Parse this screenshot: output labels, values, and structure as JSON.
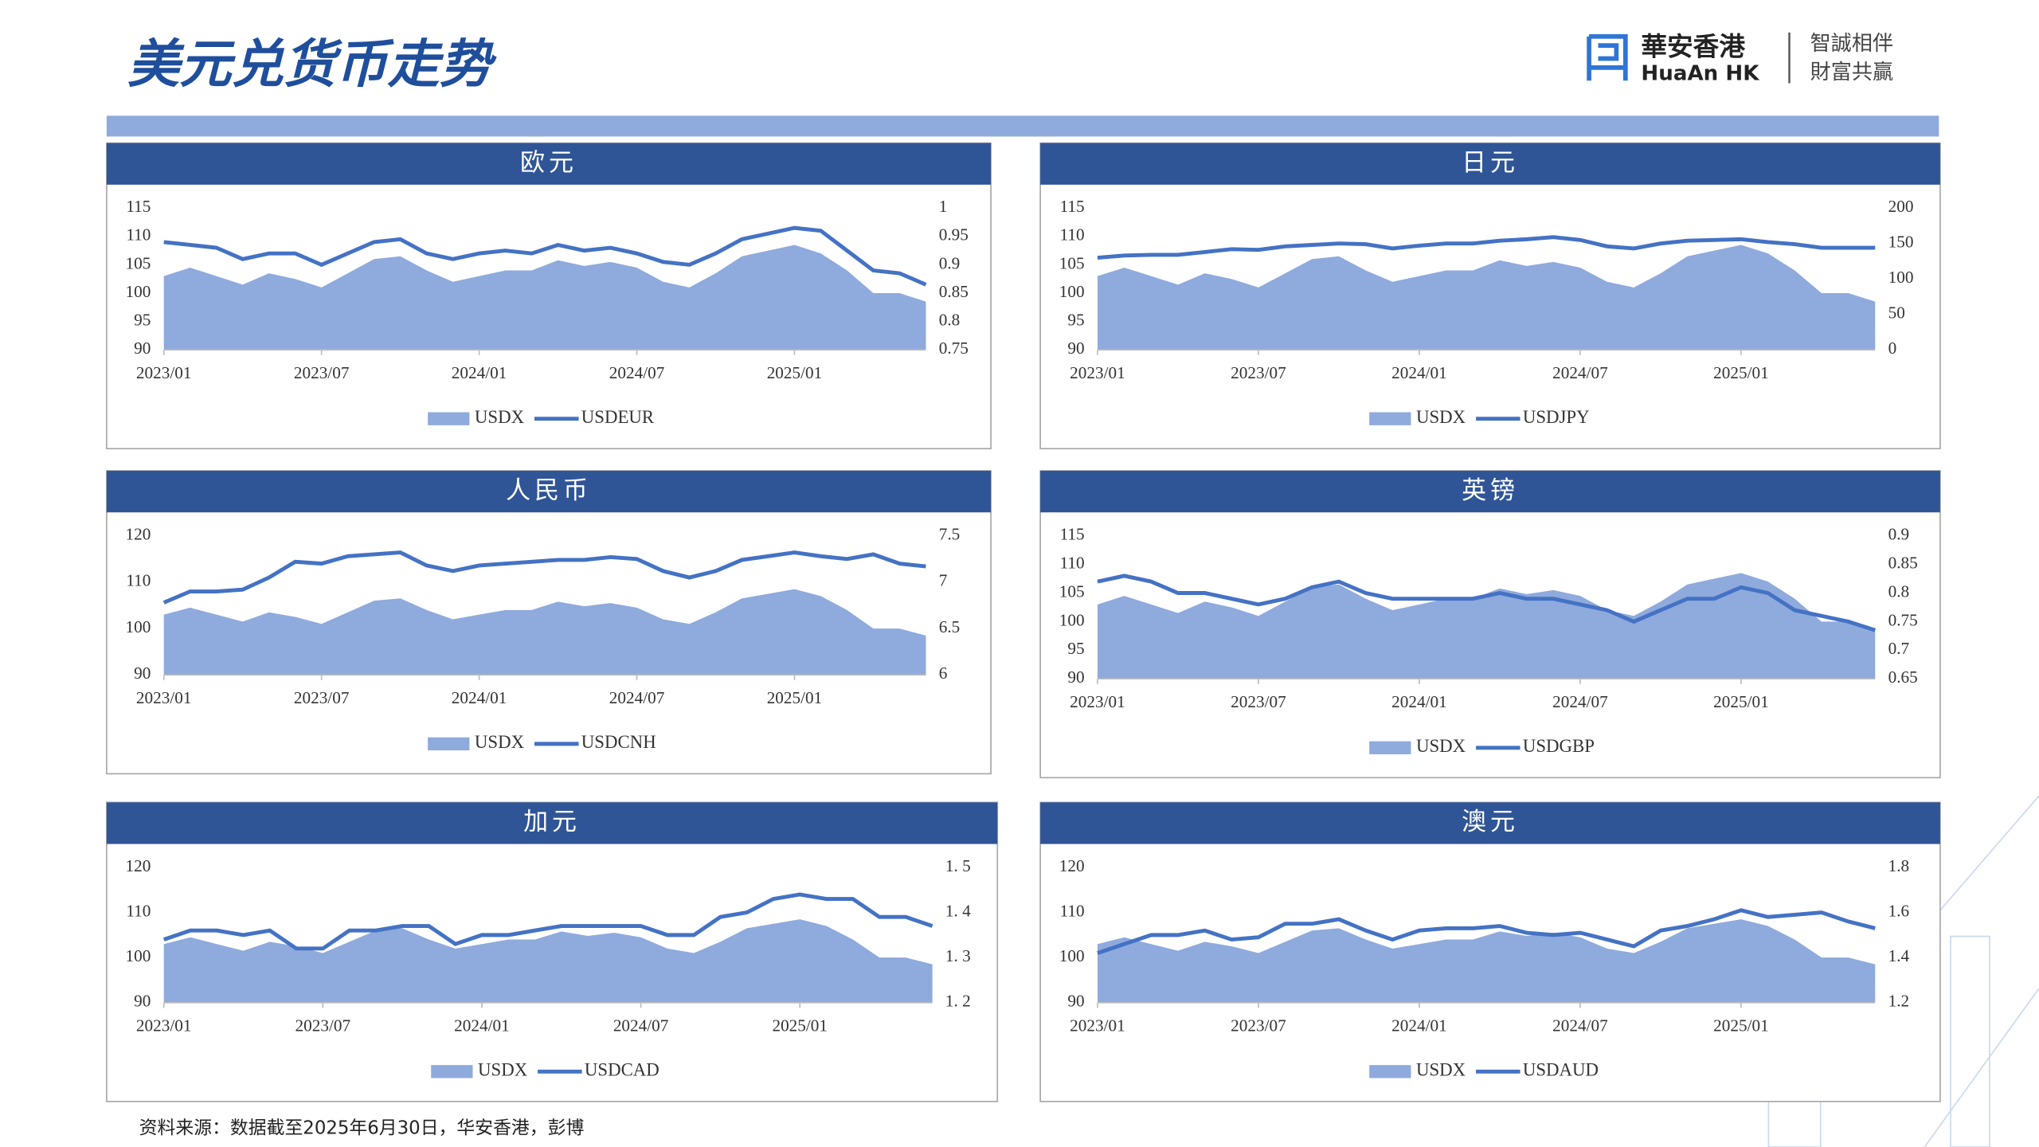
{
  "header": {
    "title": "美元兑货币走势"
  },
  "logo": {
    "name": "華安香港",
    "name_en": "HuaAn HK",
    "slogan1": "智誠相伴",
    "slogan2": "財富共贏"
  },
  "footer": {
    "source": "资料来源：数据截至2025年6月30日，华安香港，彭博"
  },
  "chart_data": [
    {
      "type": "combo",
      "title": "欧元",
      "categories": [
        "2023/01",
        null,
        null,
        null,
        null,
        null,
        "2023/07",
        null,
        null,
        null,
        null,
        null,
        "2024/01",
        null,
        null,
        null,
        null,
        null,
        "2024/07",
        null,
        null,
        null,
        null,
        null,
        "2025/01",
        null,
        null,
        null,
        null,
        null
      ],
      "ylim": [
        90,
        115
      ],
      "yticks": [
        90,
        95,
        100,
        105,
        110,
        115
      ],
      "y2lim": [
        0.75,
        1
      ],
      "y2ticks": [
        0.75,
        0.8,
        0.85,
        0.9,
        0.95,
        1
      ],
      "series": [
        {
          "name": "USDX",
          "type": "area",
          "color": "#8faadc",
          "values": [
            103,
            104.5,
            103,
            101.5,
            103.5,
            102.5,
            101,
            103.5,
            106,
            106.5,
            104,
            102,
            103,
            104,
            104,
            105.8,
            104.8,
            105.5,
            104.5,
            102,
            101,
            103.5,
            106.5,
            107.5,
            108.5,
            107,
            104,
            100,
            100,
            98.5
          ]
        },
        {
          "name": "USDEUR",
          "type": "line",
          "axis": "y2",
          "color": "#4472c4",
          "values": [
            0.94,
            0.935,
            0.93,
            0.91,
            0.92,
            0.92,
            0.9,
            0.92,
            0.94,
            0.945,
            0.92,
            0.91,
            0.92,
            0.925,
            0.92,
            0.935,
            0.925,
            0.93,
            0.92,
            0.905,
            0.9,
            0.92,
            0.945,
            0.955,
            0.965,
            0.96,
            0.925,
            0.89,
            0.885,
            0.865
          ]
        }
      ]
    },
    {
      "type": "combo",
      "title": "日元",
      "categories": [
        "2023/01",
        null,
        null,
        null,
        null,
        null,
        "2023/07",
        null,
        null,
        null,
        null,
        null,
        "2024/01",
        null,
        null,
        null,
        null,
        null,
        "2024/07",
        null,
        null,
        null,
        null,
        null,
        "2025/01",
        null,
        null,
        null,
        null,
        null
      ],
      "ylim": [
        90,
        115
      ],
      "yticks": [
        90,
        95,
        100,
        105,
        110,
        115
      ],
      "y2lim": [
        0,
        200
      ],
      "y2ticks": [
        0,
        50,
        100,
        150,
        200
      ],
      "series": [
        {
          "name": "USDX",
          "type": "area",
          "color": "#8faadc",
          "values": [
            103,
            104.5,
            103,
            101.5,
            103.5,
            102.5,
            101,
            103.5,
            106,
            106.5,
            104,
            102,
            103,
            104,
            104,
            105.8,
            104.8,
            105.5,
            104.5,
            102,
            101,
            103.5,
            106.5,
            107.5,
            108.5,
            107,
            104,
            100,
            100,
            98.5
          ]
        },
        {
          "name": "USDJPY",
          "type": "line",
          "axis": "y2",
          "color": "#4472c4",
          "values": [
            130,
            133,
            134,
            134,
            138,
            142,
            141,
            146,
            148,
            150,
            149,
            143,
            147,
            150,
            150,
            154,
            156,
            159,
            155,
            146,
            143,
            150,
            154,
            155,
            156,
            152,
            149,
            144,
            144,
            144
          ]
        }
      ]
    },
    {
      "type": "combo",
      "title": "人民币",
      "categories": [
        "2023/01",
        null,
        null,
        null,
        null,
        null,
        "2023/07",
        null,
        null,
        null,
        null,
        null,
        "2024/01",
        null,
        null,
        null,
        null,
        null,
        "2024/07",
        null,
        null,
        null,
        null,
        null,
        "2025/01",
        null,
        null,
        null,
        null,
        null
      ],
      "ylim": [
        90,
        120
      ],
      "yticks": [
        90,
        100,
        110,
        120
      ],
      "y2lim": [
        6,
        7.5
      ],
      "y2ticks": [
        6,
        6.5,
        7,
        7.5
      ],
      "series": [
        {
          "name": "USDX",
          "type": "area",
          "color": "#8faadc",
          "values": [
            103,
            104.5,
            103,
            101.5,
            103.5,
            102.5,
            101,
            103.5,
            106,
            106.5,
            104,
            102,
            103,
            104,
            104,
            105.8,
            104.8,
            105.5,
            104.5,
            102,
            101,
            103.5,
            106.5,
            107.5,
            108.5,
            107,
            104,
            100,
            100,
            98.5
          ]
        },
        {
          "name": "USDCNH",
          "type": "line",
          "axis": "y2",
          "color": "#4472c4",
          "values": [
            6.78,
            6.9,
            6.9,
            6.92,
            7.05,
            7.22,
            7.2,
            7.28,
            7.3,
            7.32,
            7.18,
            7.12,
            7.18,
            7.2,
            7.22,
            7.24,
            7.24,
            7.27,
            7.25,
            7.12,
            7.05,
            7.12,
            7.24,
            7.28,
            7.32,
            7.28,
            7.25,
            7.3,
            7.2,
            7.17
          ]
        }
      ]
    },
    {
      "type": "combo",
      "title": "英镑",
      "categories": [
        "2023/01",
        null,
        null,
        null,
        null,
        null,
        "2023/07",
        null,
        null,
        null,
        null,
        null,
        "2024/01",
        null,
        null,
        null,
        null,
        null,
        "2024/07",
        null,
        null,
        null,
        null,
        null,
        "2025/01",
        null,
        null,
        null,
        null,
        null
      ],
      "ylim": [
        90,
        115
      ],
      "yticks": [
        90,
        95,
        100,
        105,
        110,
        115
      ],
      "y2lim": [
        0.65,
        0.9
      ],
      "y2ticks": [
        0.65,
        0.7,
        0.75,
        0.8,
        0.85,
        0.9
      ],
      "series": [
        {
          "name": "USDX",
          "type": "area",
          "color": "#8faadc",
          "values": [
            103,
            104.5,
            103,
            101.5,
            103.5,
            102.5,
            101,
            103.5,
            106,
            106.5,
            104,
            102,
            103,
            104,
            104,
            105.8,
            104.8,
            105.5,
            104.5,
            102,
            101,
            103.5,
            106.5,
            107.5,
            108.5,
            107,
            104,
            100,
            100,
            98.5
          ]
        },
        {
          "name": "USDGBP",
          "type": "line",
          "axis": "y2",
          "color": "#4472c4",
          "values": [
            0.82,
            0.83,
            0.82,
            0.8,
            0.8,
            0.79,
            0.78,
            0.79,
            0.81,
            0.82,
            0.8,
            0.79,
            0.79,
            0.79,
            0.79,
            0.8,
            0.79,
            0.79,
            0.78,
            0.77,
            0.75,
            0.77,
            0.79,
            0.79,
            0.81,
            0.8,
            0.77,
            0.76,
            0.75,
            0.735
          ]
        }
      ]
    },
    {
      "type": "combo",
      "title": "加元",
      "categories": [
        "2023/01",
        null,
        null,
        null,
        null,
        null,
        "2023/07",
        null,
        null,
        null,
        null,
        null,
        "2024/01",
        null,
        null,
        null,
        null,
        null,
        "2024/07",
        null,
        null,
        null,
        null,
        null,
        "2025/01",
        null,
        null,
        null,
        null,
        null
      ],
      "ylim": [
        90,
        120
      ],
      "yticks": [
        90,
        100,
        110,
        120
      ],
      "y2lim": [
        1.2,
        1.5
      ],
      "y2ticks": [
        {
          "value": 1.2,
          "label": "1. 2"
        },
        {
          "value": 1.3,
          "label": "1. 3"
        },
        {
          "value": 1.4,
          "label": "1. 4"
        },
        {
          "value": 1.5,
          "label": "1. 5"
        }
      ],
      "series": [
        {
          "name": "USDX",
          "type": "area",
          "color": "#8faadc",
          "values": [
            103,
            104.5,
            103,
            101.5,
            103.5,
            102.5,
            101,
            103.5,
            106,
            106.5,
            104,
            102,
            103,
            104,
            104,
            105.8,
            104.8,
            105.5,
            104.5,
            102,
            101,
            103.5,
            106.5,
            107.5,
            108.5,
            107,
            104,
            100,
            100,
            98.5
          ]
        },
        {
          "name": "USDCAD",
          "type": "line",
          "axis": "y2",
          "color": "#4472c4",
          "values": [
            1.34,
            1.36,
            1.36,
            1.35,
            1.36,
            1.32,
            1.32,
            1.36,
            1.36,
            1.37,
            1.37,
            1.33,
            1.35,
            1.35,
            1.36,
            1.37,
            1.37,
            1.37,
            1.37,
            1.35,
            1.35,
            1.39,
            1.4,
            1.43,
            1.44,
            1.43,
            1.43,
            1.39,
            1.39,
            1.37
          ]
        }
      ]
    },
    {
      "type": "combo",
      "title": "澳元",
      "categories": [
        "2023/01",
        null,
        null,
        null,
        null,
        null,
        "2023/07",
        null,
        null,
        null,
        null,
        null,
        "2024/01",
        null,
        null,
        null,
        null,
        null,
        "2024/07",
        null,
        null,
        null,
        null,
        null,
        "2025/01",
        null,
        null,
        null,
        null,
        null
      ],
      "ylim": [
        90,
        120
      ],
      "yticks": [
        90,
        100,
        110,
        120
      ],
      "y2lim": [
        1.2,
        1.8
      ],
      "y2ticks": [
        1.2,
        1.4,
        1.6,
        1.8
      ],
      "series": [
        {
          "name": "USDX",
          "type": "area",
          "color": "#8faadc",
          "values": [
            103,
            104.5,
            103,
            101.5,
            103.5,
            102.5,
            101,
            103.5,
            106,
            106.5,
            104,
            102,
            103,
            104,
            104,
            105.8,
            104.8,
            105.5,
            104.5,
            102,
            101,
            103.5,
            106.5,
            107.5,
            108.5,
            107,
            104,
            100,
            100,
            98.5
          ]
        },
        {
          "name": "USDAUD",
          "type": "line",
          "axis": "y2",
          "color": "#4472c4",
          "values": [
            1.42,
            1.46,
            1.5,
            1.5,
            1.52,
            1.48,
            1.49,
            1.55,
            1.55,
            1.57,
            1.52,
            1.48,
            1.52,
            1.53,
            1.53,
            1.54,
            1.51,
            1.5,
            1.51,
            1.48,
            1.45,
            1.52,
            1.54,
            1.57,
            1.61,
            1.58,
            1.59,
            1.6,
            1.56,
            1.53
          ]
        }
      ]
    }
  ]
}
